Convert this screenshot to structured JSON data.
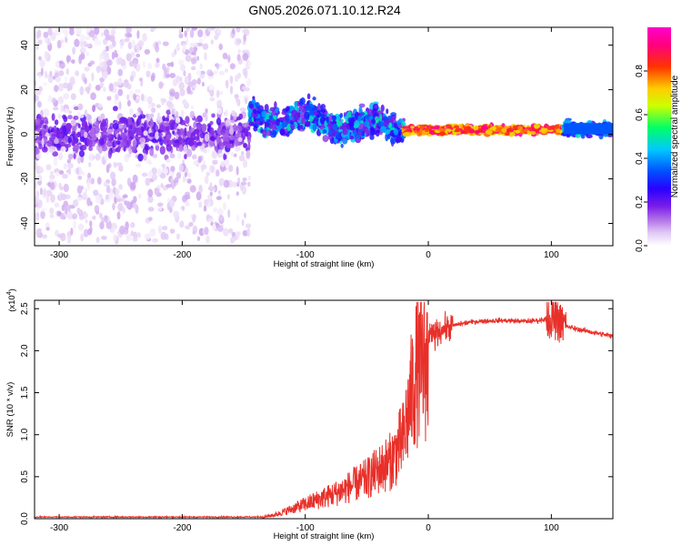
{
  "title": "GN05.2026.071.10.12.R24",
  "chart_data": [
    {
      "type": "heatmap",
      "xlabel": "Height of straight line (km)",
      "ylabel": "Frequency (Hz)",
      "xlim": [
        -320,
        150
      ],
      "ylim": [
        -50,
        48
      ],
      "xticks": [
        -300,
        -200,
        -100,
        0,
        100
      ],
      "yticks": [
        -40,
        -20,
        0,
        20,
        40
      ],
      "colorbar": {
        "label": "Normalized spectral amplitude",
        "range": [
          0,
          1
        ],
        "ticks": [
          "0.0",
          "0.2",
          "0.4",
          "0.6",
          "0.8"
        ],
        "colors": [
          "#ffffff",
          "#e0c8f4",
          "#b070e8",
          "#7a1ee8",
          "#2a00ff",
          "#0050ff",
          "#00c8ff",
          "#00ff66",
          "#ccff00",
          "#ffcc00",
          "#ff3300",
          "#ff0080",
          "#ff00cc"
        ]
      },
      "regions": [
        {
          "x_range": [
            -320,
            -145
          ],
          "description": "broadband noise",
          "center_freq": 0,
          "spread": 48,
          "amplitude": 0.15
        },
        {
          "x_range": [
            -145,
            -20
          ],
          "description": "band",
          "center_freq": 5,
          "spread": 6,
          "amplitude": 0.45
        },
        {
          "x_range": [
            -20,
            110
          ],
          "description": "narrow line",
          "center_freq": 2,
          "spread": 1.5,
          "amplitude": 0.95
        },
        {
          "x_range": [
            110,
            150
          ],
          "description": "narrow line",
          "center_freq": 2.5,
          "spread": 2.5,
          "amplitude": 0.55
        }
      ]
    },
    {
      "type": "line",
      "xlabel": "Height of straight line (km)",
      "ylabel": "SNR (10 * v/v)",
      "y_multiplier": "(x10",
      "y_multiplier_exp": "4",
      "xlim": [
        -320,
        150
      ],
      "ylim": [
        0,
        2.6
      ],
      "xticks": [
        -300,
        -200,
        -100,
        0,
        100
      ],
      "yticks": [
        "0.0",
        "0.5",
        "1.0",
        "1.5",
        "2.0",
        "2.5"
      ],
      "color": "#e8302a",
      "series": [
        {
          "name": "SNR",
          "x": [
            -320,
            -135,
            -125,
            -100,
            -75,
            -50,
            -30,
            -20,
            -15,
            -10,
            0,
            10,
            20,
            30,
            40,
            60,
            80,
            90,
            100,
            105,
            110,
            120,
            140,
            150
          ],
          "y": [
            0.02,
            0.02,
            0.05,
            0.2,
            0.35,
            0.55,
            0.8,
            1.1,
            1.6,
            2.0,
            2.15,
            2.25,
            2.3,
            2.33,
            2.35,
            2.36,
            2.35,
            2.36,
            2.4,
            2.35,
            2.3,
            2.26,
            2.2,
            2.17
          ]
        }
      ]
    }
  ]
}
